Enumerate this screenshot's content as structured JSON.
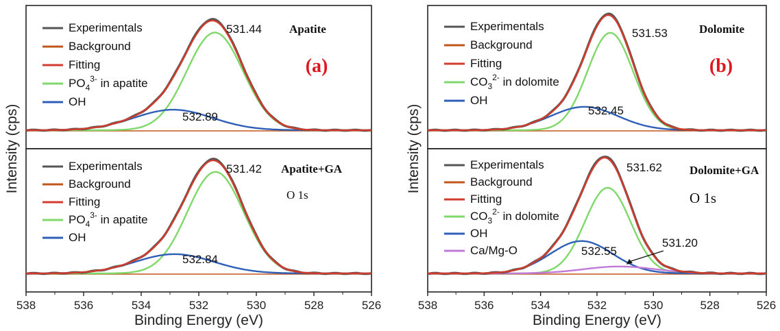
{
  "colors": {
    "experimental": "#555555",
    "background": "#c0561a",
    "fitting": "#d13c2c",
    "component_main": "#7fd86a",
    "oh": "#2e5fb8",
    "camgo": "#c079d9",
    "tag": "#e0161f"
  },
  "shared": {
    "ylabel": "Intensity (cps)",
    "xlabel": "Binding Energy (eV)",
    "xticks": [
      "538",
      "536",
      "534",
      "532",
      "530",
      "528",
      "526"
    ],
    "core": "O 1s"
  },
  "chart_data": [
    {
      "type": "line",
      "panel": "(a)",
      "sample": "Apatite",
      "xlim": [
        538,
        526
      ],
      "legend": [
        "Experimentals",
        "Background",
        "Fitting",
        "PO4 in apatite",
        "OH"
      ],
      "legend_parts": {
        "component_main": {
          "prefix": "PO",
          "sub": "4",
          "sup": "3-",
          "suffix": " in apatite"
        }
      },
      "series": [
        {
          "name": "Background",
          "component": "background",
          "baseline": 0.0
        },
        {
          "name": "PO4 in apatite",
          "component": "component_main",
          "center": 531.44,
          "height": 1.0,
          "fwhm": 2.3
        },
        {
          "name": "OH",
          "component": "oh",
          "center": 532.89,
          "height": 0.21,
          "fwhm": 3.2
        },
        {
          "name": "Fitting",
          "component": "fitting",
          "sum_of": [
            "component_main",
            "oh"
          ]
        }
      ],
      "annotations": [
        {
          "text": "531.44",
          "x": 531.44,
          "y": 1.0
        },
        {
          "text": "532.89",
          "x": 532.89,
          "y": 0.21
        }
      ]
    },
    {
      "type": "line",
      "panel": "(a)",
      "sample": "Apatite+GA",
      "xlim": [
        538,
        526
      ],
      "legend": [
        "Experimentals",
        "Background",
        "Fitting",
        "PO4 in apatite",
        "OH"
      ],
      "legend_parts": {
        "component_main": {
          "prefix": "PO",
          "sub": "4",
          "sup": "3-",
          "suffix": " in apatite"
        }
      },
      "series": [
        {
          "name": "Background",
          "component": "background",
          "baseline": 0.0
        },
        {
          "name": "PO4 in apatite",
          "component": "component_main",
          "center": 531.42,
          "height": 1.0,
          "fwhm": 2.3
        },
        {
          "name": "OH",
          "component": "oh",
          "center": 532.84,
          "height": 0.19,
          "fwhm": 3.2
        },
        {
          "name": "Fitting",
          "component": "fitting",
          "sum_of": [
            "component_main",
            "oh"
          ]
        }
      ],
      "annotations": [
        {
          "text": "531.42",
          "x": 531.42,
          "y": 1.0
        },
        {
          "text": "532.84",
          "x": 532.84,
          "y": 0.19
        }
      ]
    },
    {
      "type": "line",
      "panel": "(b)",
      "sample": "Dolomite",
      "xlim": [
        538,
        526
      ],
      "legend": [
        "Experimentals",
        "Background",
        "Fitting",
        "CO3 in dolomite",
        "OH"
      ],
      "legend_parts": {
        "component_main": {
          "prefix": "CO",
          "sub": "3",
          "sup": "2-",
          "suffix": " in dolomite"
        }
      },
      "series": [
        {
          "name": "Background",
          "component": "background",
          "baseline": 0.0
        },
        {
          "name": "CO3 in dolomite",
          "component": "component_main",
          "center": 531.53,
          "height": 1.0,
          "fwhm": 1.9
        },
        {
          "name": "OH",
          "component": "oh",
          "center": 532.45,
          "height": 0.24,
          "fwhm": 2.8
        },
        {
          "name": "Fitting",
          "component": "fitting",
          "sum_of": [
            "component_main",
            "oh"
          ]
        }
      ],
      "annotations": [
        {
          "text": "531.53",
          "x": 531.53,
          "y": 1.0
        },
        {
          "text": "532.45",
          "x": 532.45,
          "y": 0.24
        }
      ]
    },
    {
      "type": "line",
      "panel": "(b)",
      "sample": "Dolomite+GA",
      "xlim": [
        538,
        526
      ],
      "legend": [
        "Experimentals",
        "Background",
        "Fitting",
        "CO3 in dolomite",
        "OH",
        "Ca/Mg-O"
      ],
      "legend_parts": {
        "component_main": {
          "prefix": "CO",
          "sub": "3",
          "sup": "2-",
          "suffix": " in dolomite"
        }
      },
      "series": [
        {
          "name": "Background",
          "component": "background",
          "baseline": 0.0
        },
        {
          "name": "CO3 in dolomite",
          "component": "component_main",
          "center": 531.62,
          "height": 0.74,
          "fwhm": 1.9
        },
        {
          "name": "OH",
          "component": "oh",
          "center": 532.55,
          "height": 0.28,
          "fwhm": 2.6
        },
        {
          "name": "Ca/Mg-O",
          "component": "camgo",
          "center": 531.2,
          "height": 0.06,
          "fwhm": 3.0
        },
        {
          "name": "Fitting",
          "component": "fitting",
          "sum_of": [
            "component_main",
            "oh",
            "camgo"
          ]
        }
      ],
      "annotations": [
        {
          "text": "531.62",
          "x": 531.62,
          "y": 1.0
        },
        {
          "text": "532.55",
          "x": 532.55,
          "y": 0.28
        },
        {
          "text": "531.20",
          "x": 531.2,
          "y": 0.06,
          "arrow": true
        }
      ]
    }
  ]
}
